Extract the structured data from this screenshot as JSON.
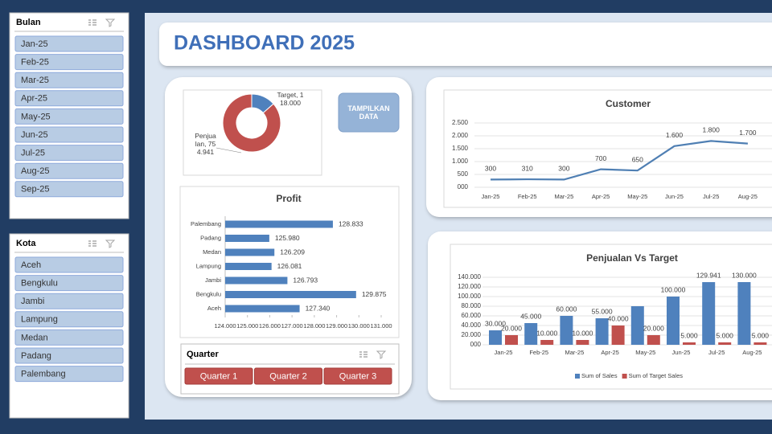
{
  "title": "DASHBOARD 2025",
  "button": "TAMPILKAN DATA",
  "slicers": [
    {
      "title": "Bulan",
      "items": [
        "Jan-25",
        "Feb-25",
        "Mar-25",
        "Apr-25",
        "May-25",
        "Jun-25",
        "Jul-25",
        "Aug-25",
        "Sep-25"
      ]
    },
    {
      "title": "Kota",
      "items": [
        "Aceh",
        "Bengkulu",
        "Jambi",
        "Lampung",
        "Medan",
        "Padang",
        "Palembang"
      ]
    },
    {
      "title": "Quarter",
      "items": [
        "Quarter 1",
        "Quarter 2",
        "Quarter 3"
      ]
    }
  ],
  "chart_data": [
    {
      "type": "donut",
      "values": [
        118000,
        754941
      ],
      "value_labels": [
        "Target, 118.000",
        "Penjualan, 754.941"
      ],
      "colors": [
        "#4f81bd",
        "#c0504d"
      ]
    },
    {
      "type": "bar",
      "orientation": "horizontal",
      "title": "Profit",
      "categories": [
        "Palembang",
        "Padang",
        "Medan",
        "Lampung",
        "Jambi",
        "Bengkulu",
        "Aceh"
      ],
      "values": [
        128833,
        125980,
        126209,
        126081,
        126793,
        129875,
        127340
      ],
      "value_labels": [
        "128.833",
        "125.980",
        "126.209",
        "126.081",
        "126.793",
        "129.875",
        "127.340"
      ],
      "color": "#4f81bd",
      "xlim": [
        124000,
        131000
      ],
      "xticks": [
        {
          "value": 124000,
          "label": "124.000"
        },
        {
          "value": 125000,
          "label": "125.000"
        },
        {
          "value": 126000,
          "label": "126.000"
        },
        {
          "value": 127000,
          "label": "127.000"
        },
        {
          "value": 128000,
          "label": "128.000"
        },
        {
          "value": 129000,
          "label": "129.000"
        },
        {
          "value": 130000,
          "label": "130.000"
        },
        {
          "value": 131000,
          "label": "131.000"
        }
      ]
    },
    {
      "type": "line",
      "title": "Customer",
      "categories": [
        "Jan-25",
        "Feb-25",
        "Mar-25",
        "Apr-25",
        "May-25",
        "Jun-25",
        "Jul-25",
        "Aug-25"
      ],
      "values": [
        300,
        310,
        300,
        700,
        650,
        1600,
        1800,
        1700
      ],
      "value_labels": [
        "300",
        "310",
        "300",
        "700",
        "650",
        "1.600",
        "1.800",
        "1.700"
      ],
      "color": "#4f7fb3",
      "grid": true,
      "ylim": [
        0,
        2500
      ],
      "yticks": [
        {
          "value": 0,
          "label": "000"
        },
        500,
        {
          "value": 1000,
          "label": "1.000"
        },
        {
          "value": 1500,
          "label": "1.500"
        },
        {
          "value": 2000,
          "label": "2.000"
        },
        {
          "value": 2500,
          "label": "2.500"
        }
      ]
    },
    {
      "type": "bar",
      "title": "Penjualan Vs Target",
      "categories": [
        "Jan-25",
        "Feb-25",
        "Mar-25",
        "Apr-25",
        "May-25",
        "Jun-25",
        "Jul-25",
        "Aug-25"
      ],
      "series": [
        {
          "name": "Sum of Sales",
          "color": "#4f81bd",
          "values": [
            30000,
            45000,
            60000,
            55000,
            80000,
            100000,
            129941,
            130000
          ],
          "value_labels": [
            "30.000",
            "45.000",
            "60.000",
            "55.000",
            null,
            "100.000",
            "129.941",
            "130.000"
          ]
        },
        {
          "name": "Sum of Target Sales",
          "color": "#c0504d",
          "values": [
            20000,
            10000,
            10000,
            40000,
            20000,
            5000,
            5000,
            5000
          ],
          "value_labels": [
            "20.000",
            "10.000",
            "10.000",
            "40.000",
            "20.000",
            "5.000",
            "5.000",
            "5.000"
          ]
        }
      ],
      "grid": true,
      "legend": "bottom",
      "ylim": [
        0,
        140000
      ],
      "yticks": [
        {
          "value": 0,
          "label": "000"
        },
        {
          "value": 20000,
          "label": "20.000"
        },
        {
          "value": 40000,
          "label": "40.000"
        },
        {
          "value": 60000,
          "label": "60.000"
        },
        {
          "value": 80000,
          "label": "80.000"
        },
        {
          "value": 100000,
          "label": "100.000"
        },
        {
          "value": 120000,
          "label": "120.000"
        },
        {
          "value": 140000,
          "label": "140.000"
        }
      ]
    }
  ]
}
